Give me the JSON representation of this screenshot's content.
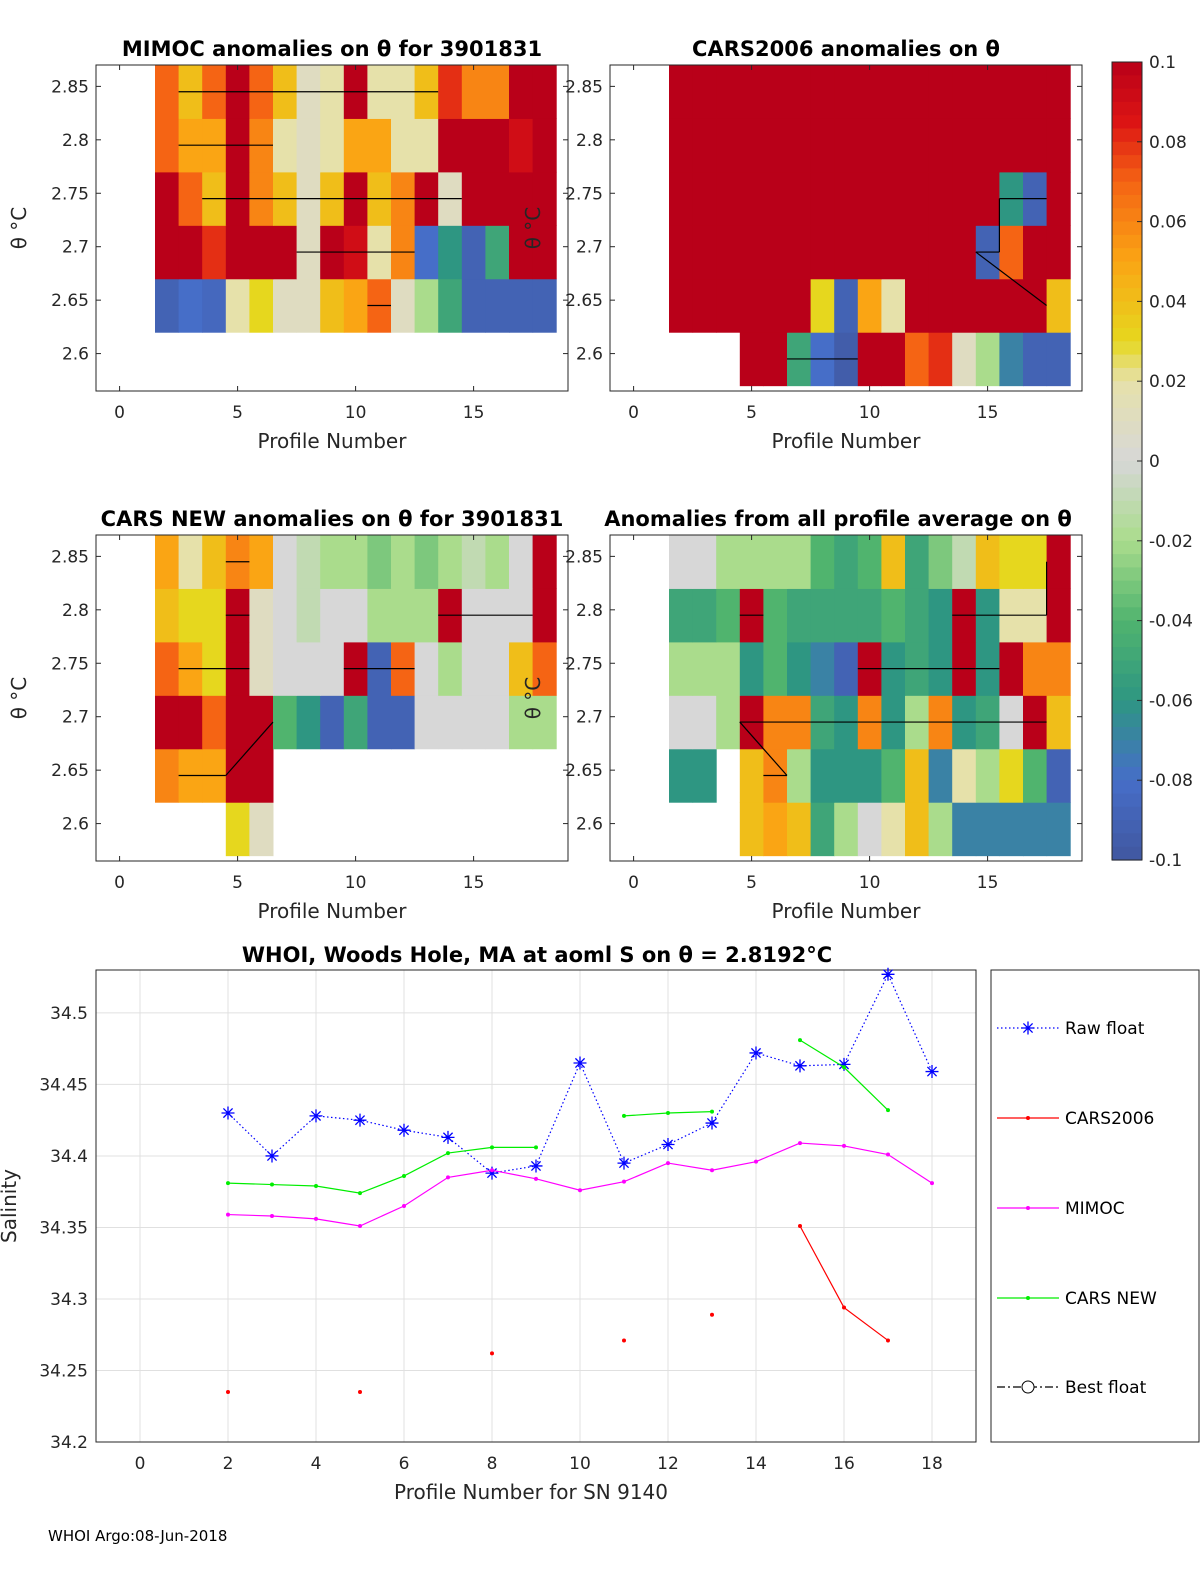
{
  "footer": "WHOI Argo:08-Jun-2018",
  "chart_data": [
    {
      "type": "heatmap",
      "title": "MIMOC anomalies on θ  for 3901831",
      "xlabel": "Profile Number",
      "ylabel": "θ °C",
      "xlim": [
        -1,
        19
      ],
      "ylim": [
        2.565,
        2.87
      ],
      "xticks": [
        0,
        5,
        10,
        15
      ],
      "yticks": [
        2.6,
        2.65,
        2.7,
        2.75,
        2.8,
        2.85
      ],
      "x": [
        2,
        3,
        4,
        5,
        6,
        7,
        8,
        9,
        10,
        11,
        12,
        13,
        14,
        15,
        16,
        17,
        18
      ],
      "y": [
        2.645,
        2.695,
        2.745,
        2.795,
        2.845
      ],
      "z": [
        [
          -0.09,
          -0.08,
          -0.085,
          0.02,
          0.03,
          0.01,
          0.01,
          0.04,
          0.05,
          0.07,
          0.01,
          -0.02,
          -0.05,
          -0.09,
          -0.09,
          -0.09,
          -0.09
        ],
        [
          0.1,
          0.1,
          0.08,
          0.1,
          0.1,
          0.1,
          0.01,
          0.1,
          0.09,
          0.02,
          0.06,
          -0.08,
          -0.06,
          -0.09,
          -0.05,
          0.1,
          0.1
        ],
        [
          0.1,
          0.07,
          0.04,
          0.1,
          0.06,
          0.04,
          0.01,
          0.04,
          0.1,
          0.04,
          0.06,
          0.1,
          0.01,
          0.1,
          0.1,
          0.1,
          0.1
        ],
        [
          0.07,
          0.05,
          0.05,
          0.1,
          0.06,
          0.02,
          0.01,
          0.02,
          0.05,
          0.05,
          0.02,
          0.02,
          0.1,
          0.1,
          0.1,
          0.09,
          0.1
        ],
        [
          0.07,
          0.04,
          0.07,
          0.1,
          0.07,
          0.04,
          0.01,
          0.02,
          0.1,
          0.02,
          0.02,
          0.04,
          0.08,
          0.06,
          0.06,
          0.1,
          0.1
        ]
      ]
    },
    {
      "type": "heatmap",
      "title": "CARS2006 anomalies on θ",
      "xlabel": "Profile Number",
      "ylabel": "θ °C",
      "xlim": [
        -1,
        19
      ],
      "ylim": [
        2.565,
        2.87
      ],
      "xticks": [
        0,
        5,
        10,
        15
      ],
      "yticks": [
        2.6,
        2.65,
        2.7,
        2.75,
        2.8,
        2.85
      ],
      "x": [
        2,
        3,
        4,
        5,
        6,
        7,
        8,
        9,
        10,
        11,
        12,
        13,
        14,
        15,
        16,
        17,
        18
      ],
      "y": [
        2.595,
        2.645,
        2.695,
        2.745,
        2.795,
        2.845
      ],
      "z": [
        [
          null,
          null,
          null,
          0.1,
          0.1,
          -0.05,
          -0.08,
          -0.095,
          0.1,
          0.1,
          0.07,
          0.08,
          0.01,
          -0.02,
          -0.07,
          -0.09,
          -0.09
        ],
        [
          0.1,
          0.1,
          0.1,
          0.1,
          0.1,
          0.1,
          0.03,
          -0.09,
          0.05,
          0.02,
          0.1,
          0.1,
          0.1,
          0.1,
          0.1,
          0.1,
          0.04
        ],
        [
          0.1,
          0.1,
          0.1,
          0.1,
          0.1,
          0.1,
          0.1,
          0.1,
          0.1,
          0.1,
          0.1,
          0.1,
          0.1,
          -0.09,
          0.07,
          0.1,
          0.1
        ],
        [
          0.1,
          0.1,
          0.1,
          0.1,
          0.1,
          0.1,
          0.1,
          0.1,
          0.1,
          0.1,
          0.1,
          0.1,
          0.1,
          0.1,
          -0.06,
          -0.09,
          0.1
        ],
        [
          0.1,
          0.1,
          0.1,
          0.1,
          0.1,
          0.1,
          0.1,
          0.1,
          0.1,
          0.1,
          0.1,
          0.1,
          0.1,
          0.1,
          0.1,
          0.1,
          0.1
        ],
        [
          0.1,
          0.1,
          0.1,
          0.1,
          0.1,
          0.1,
          0.1,
          0.1,
          0.1,
          0.1,
          0.1,
          0.1,
          0.1,
          0.1,
          0.1,
          0.1,
          0.1
        ]
      ]
    },
    {
      "type": "heatmap",
      "title": "CARS NEW anomalies on θ for 3901831",
      "xlabel": "Profile Number",
      "ylabel": "θ °C",
      "xlim": [
        -1,
        19
      ],
      "ylim": [
        2.565,
        2.87
      ],
      "xticks": [
        0,
        5,
        10,
        15
      ],
      "yticks": [
        2.6,
        2.65,
        2.7,
        2.75,
        2.8,
        2.85
      ],
      "x": [
        2,
        3,
        4,
        5,
        6,
        7,
        8,
        9,
        10,
        11,
        12,
        13,
        14,
        15,
        16,
        17,
        18
      ],
      "y": [
        2.595,
        2.645,
        2.695,
        2.745,
        2.795,
        2.845
      ],
      "z": [
        [
          null,
          null,
          null,
          0.03,
          0.01,
          null,
          null,
          null,
          null,
          null,
          null,
          null,
          null,
          null,
          null,
          null,
          null
        ],
        [
          0.06,
          0.05,
          0.05,
          0.1,
          0.1,
          null,
          null,
          null,
          null,
          null,
          null,
          null,
          null,
          null,
          null,
          null,
          null
        ],
        [
          0.1,
          0.1,
          0.07,
          0.1,
          0.1,
          -0.04,
          -0.06,
          -0.09,
          -0.05,
          -0.09,
          -0.09,
          0.0,
          0.0,
          0.0,
          0.0,
          -0.02,
          -0.02
        ],
        [
          0.07,
          0.05,
          0.03,
          0.1,
          0.01,
          0.0,
          0.0,
          0.0,
          0.1,
          -0.09,
          0.07,
          0.0,
          -0.02,
          0.0,
          0.0,
          0.04,
          0.07
        ],
        [
          0.04,
          0.03,
          0.03,
          0.1,
          0.01,
          0.0,
          -0.01,
          0.0,
          0.0,
          -0.02,
          -0.02,
          -0.02,
          0.1,
          0.0,
          0.0,
          0.0,
          0.1
        ],
        [
          0.05,
          0.02,
          0.04,
          0.06,
          0.05,
          0.0,
          -0.01,
          -0.02,
          -0.02,
          -0.03,
          -0.02,
          -0.03,
          -0.02,
          -0.01,
          -0.02,
          0.0,
          0.1
        ]
      ]
    },
    {
      "type": "heatmap",
      "title": "Anomalies from all profile average on θ",
      "xlabel": "Profile Number",
      "ylabel": "θ °C",
      "xlim": [
        -1,
        19
      ],
      "ylim": [
        2.565,
        2.87
      ],
      "xticks": [
        0,
        5,
        10,
        15
      ],
      "yticks": [
        2.6,
        2.65,
        2.7,
        2.75,
        2.8,
        2.85
      ],
      "x": [
        2,
        3,
        4,
        5,
        6,
        7,
        8,
        9,
        10,
        11,
        12,
        13,
        14,
        15,
        16,
        17,
        18
      ],
      "y": [
        2.595,
        2.645,
        2.695,
        2.745,
        2.795,
        2.845
      ],
      "z": [
        [
          null,
          null,
          null,
          0.04,
          0.05,
          0.04,
          -0.05,
          -0.02,
          0.0,
          0.02,
          0.04,
          -0.02,
          -0.07,
          -0.07,
          -0.07,
          -0.07,
          -0.07
        ],
        [
          -0.06,
          -0.06,
          null,
          0.04,
          0.06,
          -0.02,
          -0.06,
          -0.06,
          -0.06,
          -0.04,
          0.04,
          -0.07,
          0.02,
          -0.02,
          0.03,
          -0.04,
          -0.09
        ],
        [
          0.0,
          0.0,
          -0.02,
          0.1,
          0.06,
          0.06,
          -0.05,
          -0.06,
          0.06,
          -0.06,
          -0.02,
          0.06,
          -0.06,
          -0.05,
          0.0,
          0.1,
          0.04
        ],
        [
          -0.02,
          -0.02,
          -0.02,
          -0.06,
          -0.04,
          -0.06,
          -0.07,
          -0.09,
          0.1,
          -0.06,
          -0.05,
          -0.06,
          0.1,
          -0.06,
          0.1,
          0.06,
          0.06
        ],
        [
          -0.05,
          -0.05,
          -0.04,
          0.1,
          -0.04,
          -0.05,
          -0.05,
          -0.05,
          -0.05,
          -0.04,
          -0.05,
          -0.06,
          0.1,
          -0.06,
          0.02,
          0.02,
          0.1
        ],
        [
          0.0,
          0.0,
          -0.02,
          -0.02,
          -0.02,
          -0.02,
          -0.04,
          -0.05,
          -0.04,
          0.04,
          -0.05,
          -0.03,
          -0.01,
          0.04,
          0.03,
          0.03,
          0.1
        ]
      ]
    },
    {
      "type": "line",
      "title": "WHOI, Woods Hole, MA at aoml S on θ = 2.8192°C",
      "xlabel": "Profile Number for SN 9140",
      "ylabel": "Salinity",
      "xlim": [
        -1,
        19
      ],
      "ylim": [
        34.2,
        34.53
      ],
      "xticks": [
        0,
        2,
        4,
        6,
        8,
        10,
        12,
        14,
        16,
        18
      ],
      "yticks": [
        34.2,
        34.25,
        34.3,
        34.35,
        34.4,
        34.45,
        34.5
      ],
      "grid": true,
      "series": [
        {
          "name": "Raw float",
          "color": "#0000ff",
          "style": "dotted",
          "marker": "star",
          "x": [
            2,
            3,
            4,
            5,
            6,
            7,
            8,
            9,
            10,
            11,
            12,
            13,
            14,
            15,
            16,
            17,
            18
          ],
          "values": [
            34.43,
            34.4,
            34.428,
            34.425,
            34.418,
            34.413,
            34.388,
            34.393,
            34.465,
            34.395,
            34.408,
            34.423,
            34.472,
            34.463,
            34.464,
            34.527,
            34.459
          ]
        },
        {
          "name": "CARS2006",
          "color": "#ff0000",
          "style": "solid",
          "marker": "dot",
          "x": [
            2,
            3,
            4,
            5,
            6,
            7,
            8,
            9,
            10,
            11,
            12,
            13,
            14,
            15,
            16,
            17,
            18
          ],
          "values": [
            34.235,
            null,
            null,
            34.235,
            null,
            null,
            34.262,
            null,
            null,
            34.271,
            null,
            34.289,
            null,
            34.351,
            34.294,
            34.271,
            null
          ]
        },
        {
          "name": "MIMOC",
          "color": "#ff00ff",
          "style": "solid",
          "marker": "dot",
          "x": [
            2,
            3,
            4,
            5,
            6,
            7,
            8,
            9,
            10,
            11,
            12,
            13,
            14,
            15,
            16,
            17,
            18
          ],
          "values": [
            34.359,
            34.358,
            34.356,
            34.351,
            34.365,
            34.385,
            34.39,
            34.384,
            34.376,
            34.382,
            34.395,
            34.39,
            34.396,
            34.409,
            34.407,
            34.401,
            34.381
          ]
        },
        {
          "name": "CARS NEW",
          "color": "#00ee00",
          "style": "solid",
          "marker": "dot",
          "x": [
            2,
            3,
            4,
            5,
            6,
            7,
            8,
            9,
            10,
            11,
            12,
            13,
            14,
            15,
            16,
            17,
            18
          ],
          "values": [
            34.381,
            34.38,
            34.379,
            34.374,
            34.386,
            34.402,
            34.406,
            34.406,
            null,
            34.428,
            34.43,
            34.431,
            null,
            34.481,
            34.462,
            34.432,
            null
          ]
        },
        {
          "name": "Best float",
          "color": "#000000",
          "style": "dashdot",
          "marker": "circle",
          "x": [],
          "values": []
        }
      ]
    },
    {
      "type": "colorbar",
      "ticks": [
        "0.1",
        "0.08",
        "0.06",
        "0.04",
        "0.02",
        "0",
        "-0.02",
        "-0.04",
        "-0.06",
        "-0.08",
        "-0.1"
      ],
      "range": [
        -0.1,
        0.1
      ]
    }
  ]
}
